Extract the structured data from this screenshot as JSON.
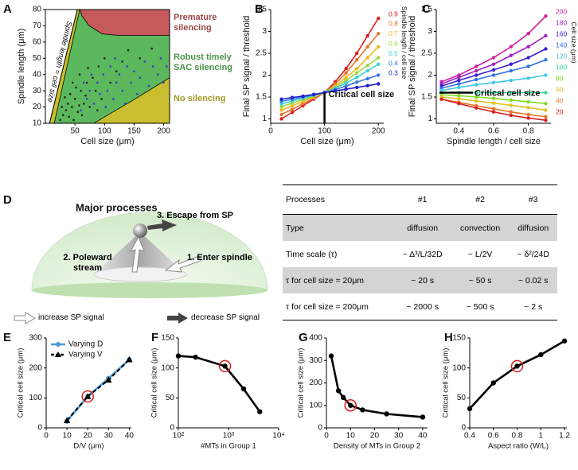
{
  "chart_data": [
    {
      "type": "scatter",
      "panel": "A",
      "xlabel": "Cell size (μm)",
      "ylabel": "Spindle length (μm)",
      "xlim": [
        0,
        210
      ],
      "ylim": [
        10,
        80
      ],
      "xticks": [
        50,
        100,
        150,
        200
      ],
      "yticks": [
        10,
        20,
        30,
        40,
        50,
        60,
        70,
        80
      ],
      "regions": [
        {
          "name": "Premature silencing",
          "color": "#c45a5a",
          "x": [
            58,
            210,
            210,
            125,
            96,
            74,
            62
          ],
          "values": [
            80,
            80,
            64,
            64,
            65,
            70,
            76
          ]
        },
        {
          "name": "Robust timely SAC silencing",
          "color": "#5cb85c",
          "x": [
            15,
            58,
            62,
            74,
            96,
            125,
            210,
            210,
            152,
            82
          ],
          "values": [
            10,
            80,
            76,
            70,
            65,
            64,
            64,
            38,
            25,
            10
          ]
        },
        {
          "name": "No silencing",
          "color": "#c9bf2e",
          "x": [
            82,
            152,
            210,
            210,
            null,
            7,
            54,
            58,
            15
          ],
          "values": [
            10,
            25,
            38,
            10,
            null,
            10,
            80,
            80,
            10
          ]
        }
      ],
      "lines": [
        {
          "label": "Spindle length = cell size",
          "x": [
            7,
            54
          ],
          "values": [
            10,
            80
          ]
        }
      ],
      "series": [
        {
          "color": "#222222",
          "x": [
            25,
            30,
            35,
            40,
            45,
            50,
            55,
            60,
            65,
            70,
            42,
            38,
            48,
            52,
            58,
            62,
            68,
            75,
            80,
            85,
            90,
            95,
            100,
            110,
            120,
            130,
            140,
            160,
            180,
            28,
            33,
            57,
            72,
            46,
            88
          ],
          "values": [
            12,
            15,
            18,
            14,
            20,
            25,
            17,
            30,
            22,
            35,
            28,
            22,
            12,
            32,
            40,
            15,
            27,
            20,
            38,
            30,
            45,
            25,
            50,
            35,
            42,
            48,
            55,
            50,
            56,
            20,
            26,
            21,
            44,
            35,
            18
          ]
        },
        {
          "color": "#3a3ad0",
          "x": [
            60,
            70,
            75,
            82,
            88,
            92,
            98,
            105,
            110,
            115,
            120,
            125,
            130,
            138,
            145,
            150,
            155,
            160,
            168,
            175,
            182,
            190,
            195,
            200,
            205,
            65,
            78,
            102,
            118,
            135
          ],
          "values": [
            18,
            25,
            30,
            22,
            35,
            28,
            40,
            30,
            45,
            25,
            35,
            40,
            30,
            45,
            35,
            42,
            28,
            38,
            48,
            33,
            45,
            40,
            50,
            35,
            45,
            35,
            40,
            20,
            50,
            22
          ]
        }
      ]
    },
    {
      "type": "line",
      "panel": "B",
      "xlabel": "Cell size (μm)",
      "ylabel": "Final SP signal / threshold",
      "legend_title": "Spindle length / cell size",
      "annotation": "Critical cell size",
      "vline": 100,
      "xlim": [
        0,
        210
      ],
      "ylim": [
        0.9,
        3.5
      ],
      "xticks": [
        0,
        100,
        200
      ],
      "yticks": [
        1,
        1.5,
        2,
        2.5,
        3,
        3.5
      ],
      "x": [
        20,
        40,
        60,
        80,
        100,
        120,
        140,
        160,
        180,
        200
      ],
      "series": [
        {
          "name": "0.9",
          "color": "#d62020",
          "values": [
            1.0,
            1.15,
            1.3,
            1.45,
            1.6,
            1.85,
            2.15,
            2.5,
            2.9,
            3.3
          ]
        },
        {
          "name": "0.8",
          "color": "#e8742a",
          "values": [
            1.1,
            1.22,
            1.35,
            1.47,
            1.6,
            1.8,
            2.05,
            2.35,
            2.65,
            2.95
          ]
        },
        {
          "name": "0.7",
          "color": "#f0b820",
          "values": [
            1.2,
            1.3,
            1.4,
            1.5,
            1.6,
            1.75,
            1.95,
            2.15,
            2.4,
            2.65
          ]
        },
        {
          "name": "0.6",
          "color": "#9ad838",
          "values": [
            1.28,
            1.36,
            1.44,
            1.52,
            1.6,
            1.72,
            1.88,
            2.05,
            2.22,
            2.4
          ]
        },
        {
          "name": "0.5",
          "color": "#40d0d0",
          "values": [
            1.34,
            1.41,
            1.47,
            1.54,
            1.6,
            1.7,
            1.82,
            1.95,
            2.1,
            2.25
          ]
        },
        {
          "name": "0.4",
          "color": "#3878e8",
          "values": [
            1.4,
            1.45,
            1.5,
            1.55,
            1.6,
            1.67,
            1.75,
            1.84,
            1.92,
            2.0
          ]
        },
        {
          "name": "0.3",
          "color": "#2020c8",
          "values": [
            1.45,
            1.49,
            1.52,
            1.56,
            1.6,
            1.64,
            1.68,
            1.72,
            1.76,
            1.8
          ]
        }
      ]
    },
    {
      "type": "line",
      "panel": "C",
      "xlabel": "Spindle length / cell size",
      "ylabel": "Final SP signal / threshold",
      "legend_title": "Cell size (μm)",
      "annotation": "Critical cell size",
      "hline": 1.6,
      "xlim": [
        0.27,
        0.93
      ],
      "ylim": [
        0.9,
        3.5
      ],
      "xticks": [
        0.4,
        0.6,
        0.8
      ],
      "yticks": [
        1,
        1.5,
        2,
        2.5,
        3,
        3.5
      ],
      "x": [
        0.3,
        0.4,
        0.5,
        0.6,
        0.7,
        0.8,
        0.9
      ],
      "series": [
        {
          "name": "200",
          "color": "#d020a0",
          "values": [
            1.85,
            2.0,
            2.2,
            2.4,
            2.65,
            2.95,
            3.35
          ]
        },
        {
          "name": "180",
          "color": "#a020c0",
          "values": [
            1.8,
            1.95,
            2.1,
            2.25,
            2.45,
            2.65,
            2.9
          ]
        },
        {
          "name": "160",
          "color": "#3a20d0",
          "values": [
            1.75,
            1.88,
            2.0,
            2.12,
            2.25,
            2.4,
            2.6
          ]
        },
        {
          "name": "140",
          "color": "#3070e8",
          "values": [
            1.7,
            1.8,
            1.9,
            2.0,
            2.1,
            2.2,
            2.35
          ]
        },
        {
          "name": "120",
          "color": "#40c8e8",
          "values": [
            1.65,
            1.72,
            1.78,
            1.83,
            1.88,
            1.93,
            2.0
          ]
        },
        {
          "name": "100",
          "color": "#30d890",
          "values": [
            1.6,
            1.6,
            1.6,
            1.6,
            1.6,
            1.6,
            1.6
          ]
        },
        {
          "name": "80",
          "color": "#80dc20",
          "values": [
            1.55,
            1.53,
            1.5,
            1.47,
            1.43,
            1.39,
            1.35
          ]
        },
        {
          "name": "60",
          "color": "#e0c020",
          "values": [
            1.5,
            1.46,
            1.41,
            1.36,
            1.31,
            1.26,
            1.2
          ]
        },
        {
          "name": "40",
          "color": "#f07020",
          "values": [
            1.45,
            1.38,
            1.3,
            1.23,
            1.16,
            1.1,
            1.05
          ]
        },
        {
          "name": "20",
          "color": "#d82020",
          "values": [
            1.45,
            1.35,
            1.25,
            1.16,
            1.08,
            1.02,
            0.97
          ]
        }
      ]
    },
    {
      "type": "line",
      "panel": "E",
      "xlabel": "D/V (μm)",
      "ylabel": "Critical cell size (μm)",
      "legend": "upper left",
      "highlight": 1,
      "xlim": [
        0,
        41
      ],
      "ylim": [
        0,
        300
      ],
      "xticks": [
        0,
        10,
        20,
        30,
        40
      ],
      "yticks": [
        0,
        100,
        200,
        300
      ],
      "x": [
        10,
        20,
        30,
        40
      ],
      "series": [
        {
          "name": "Varying D",
          "color": "#4a9ad8",
          "marker": "circle",
          "values": [
            22,
            105,
            165,
            228
          ]
        },
        {
          "name": "Varying V",
          "color": "#000000",
          "marker": "triangle",
          "dash": true,
          "values": [
            25,
            105,
            160,
            228
          ]
        }
      ]
    },
    {
      "type": "line",
      "panel": "F",
      "xlabel": "#MTs in Group 1",
      "ylabel": "Critical cell size (μm)",
      "xscale": "log",
      "highlight": 2,
      "xlim": [
        100,
        10000
      ],
      "ylim": [
        0,
        150
      ],
      "xticks": [
        {
          "value": 100,
          "label": "10²"
        },
        {
          "value": 1000,
          "label": "10³"
        },
        {
          "value": 10000,
          "label": "10⁴"
        }
      ],
      "yticks": [
        0,
        50,
        100,
        150
      ],
      "x": [
        100,
        220,
        850,
        2000,
        4200
      ],
      "series": [
        {
          "color": "#000000",
          "marker": "circle",
          "values": [
            120,
            118,
            103,
            65,
            27
          ]
        }
      ]
    },
    {
      "type": "line",
      "panel": "G",
      "xlabel": "Density of MTs in Group 2",
      "ylabel": "Critical cell size (μm)",
      "highlight": 3,
      "xlim": [
        0,
        42
      ],
      "ylim": [
        0,
        400
      ],
      "xticks": [
        0,
        10,
        20,
        30,
        40
      ],
      "yticks": [
        0,
        100,
        200,
        300,
        400
      ],
      "x": [
        2,
        5,
        7,
        10,
        15,
        25,
        40
      ],
      "series": [
        {
          "color": "#000000",
          "marker": "circle",
          "values": [
            320,
            165,
            135,
            100,
            80,
            62,
            48
          ]
        }
      ]
    },
    {
      "type": "line",
      "panel": "H",
      "xlabel": "Aspect ratio (W/L)",
      "ylabel": "Critical cell size (μm)",
      "highlight": 2,
      "xlim": [
        0.4,
        1.22
      ],
      "ylim": [
        0,
        150
      ],
      "xticks": [
        0.4,
        0.6,
        0.8,
        1,
        1.2
      ],
      "yticks": [
        0,
        50,
        100,
        150
      ],
      "x": [
        0.4,
        0.6,
        0.8,
        1.0,
        1.2
      ],
      "series": [
        {
          "color": "#000000",
          "marker": "circle",
          "values": [
            32,
            75,
            103,
            122,
            145
          ]
        }
      ]
    }
  ],
  "panel_d": {
    "panel": "D",
    "title": "Major processes",
    "processes": [
      "1. Enter spindle",
      "2. Poleward stream",
      "3. Escape from SP"
    ],
    "legend": [
      "increase SP signal",
      "decrease SP signal"
    ],
    "table": {
      "header": [
        "Processes",
        "#1",
        "#2",
        "#3"
      ],
      "rows": [
        [
          "Type",
          "diffusion",
          "convection",
          "diffusion"
        ],
        [
          "Time scale (τ)",
          "~ Δ³/L/32D",
          "~ L/2V",
          "~ δ²/24D"
        ],
        [
          "τ for cell size = 20μm",
          "~ 20 s",
          "~ 50 s",
          "~ 0.02 s"
        ],
        [
          "τ for cell size = 200μm",
          "~ 2000 s",
          "~ 500 s",
          "~ 2 s"
        ]
      ]
    }
  }
}
